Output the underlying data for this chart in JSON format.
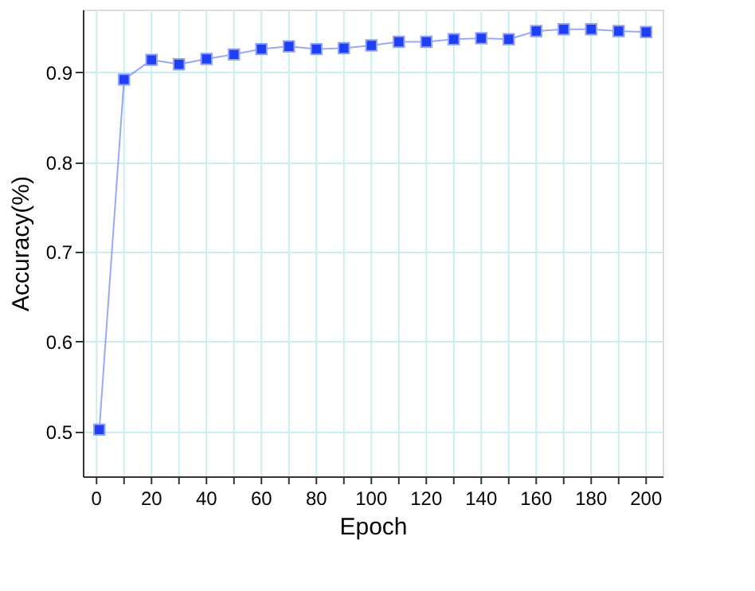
{
  "chart_data": {
    "type": "line",
    "xlabel": "Epoch",
    "ylabel": "Accuracy(%)",
    "x": [
      1,
      10,
      20,
      30,
      40,
      50,
      60,
      70,
      80,
      90,
      100,
      110,
      120,
      130,
      140,
      150,
      160,
      170,
      180,
      190,
      200
    ],
    "series": [
      {
        "color": "#1f3ff5",
        "values": [
          0.502,
          0.892,
          0.914,
          0.909,
          0.915,
          0.92,
          0.926,
          0.929,
          0.926,
          0.927,
          0.93,
          0.934,
          0.934,
          0.937,
          0.938,
          0.937,
          0.946,
          0.948,
          0.948,
          0.946,
          0.945
        ]
      }
    ],
    "xlim": [
      -5,
      206
    ],
    "ylim": [
      0.45,
      0.97
    ],
    "xticks": [
      0,
      {
        "value": 10,
        "label": null
      },
      20,
      {
        "value": 30,
        "label": null
      },
      40,
      {
        "value": 50,
        "label": null
      },
      60,
      {
        "value": 70,
        "label": null
      },
      80,
      {
        "value": 90,
        "label": null
      },
      100,
      {
        "value": 110,
        "label": null
      },
      120,
      {
        "value": 130,
        "label": null
      },
      140,
      {
        "value": 150,
        "label": null
      },
      160,
      {
        "value": 170,
        "label": null
      },
      180,
      {
        "value": 190,
        "label": null
      },
      200
    ],
    "yticks": [
      0.5,
      0.6,
      0.7,
      0.8,
      0.9
    ],
    "grid": true,
    "marker": "square",
    "line_style": "solid",
    "legend": false
  }
}
